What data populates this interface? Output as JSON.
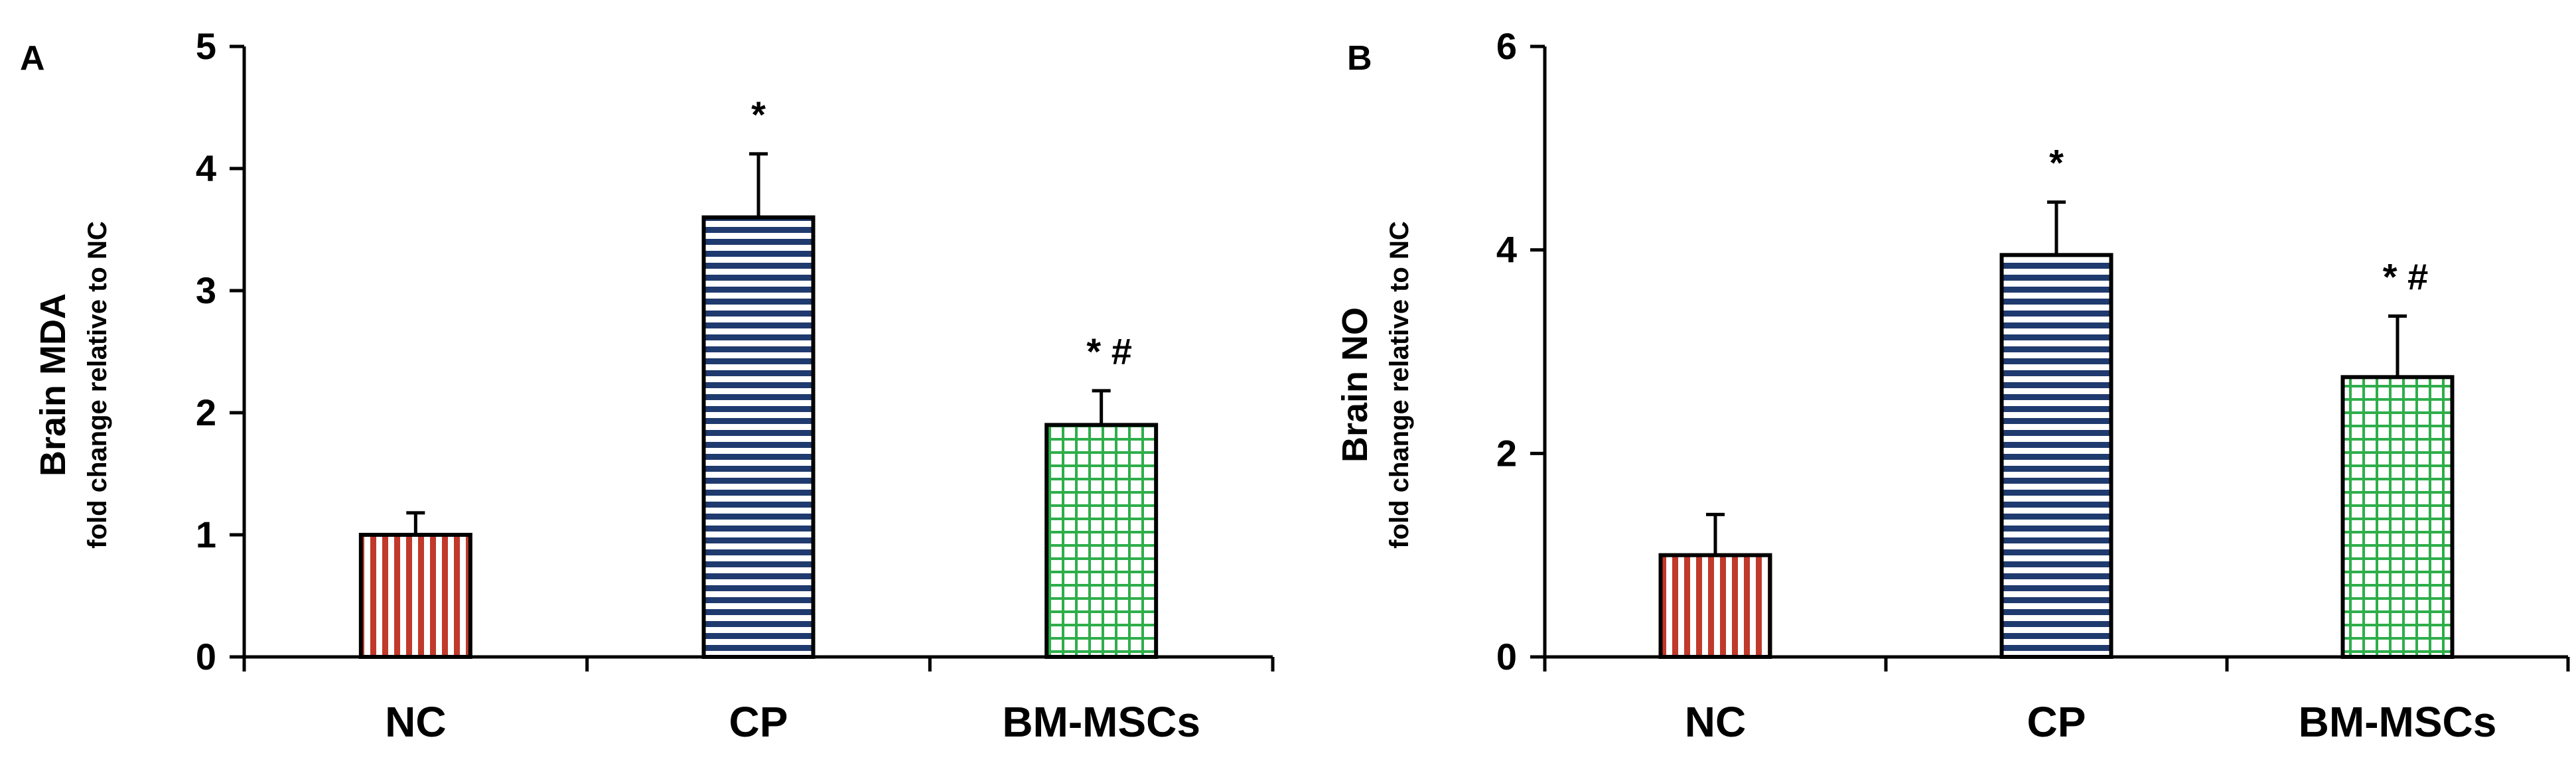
{
  "colors": {
    "NC": "#c0392b",
    "CP": "#1f3a6e",
    "BM-MSCs": "#2eae4a",
    "axis": "#000000",
    "bar_outline": "#000000"
  },
  "chart_data": [
    {
      "type": "bar",
      "panel_label": "A",
      "ylabel": "Brain MDA",
      "ylabel_sub": "fold change relative to NC",
      "xlabel": "",
      "categories": [
        "NC",
        "CP",
        "BM-MSCs"
      ],
      "values": [
        1.0,
        3.6,
        1.9
      ],
      "errors": [
        0.18,
        0.52,
        0.28
      ],
      "annotations": [
        "",
        "*",
        "* #"
      ],
      "patterns": [
        "vertical-stripes",
        "horizontal-stripes",
        "grid"
      ],
      "ylim": [
        0,
        5
      ],
      "yticks": [
        "0",
        "1",
        "2",
        "3",
        "4",
        "5"
      ],
      "grid": false
    },
    {
      "type": "bar",
      "panel_label": "B",
      "ylabel": "Brain NO",
      "ylabel_sub": "fold change relative to NC",
      "xlabel": "",
      "categories": [
        "NC",
        "CP",
        "BM-MSCs"
      ],
      "values": [
        1.0,
        3.95,
        2.75
      ],
      "errors": [
        0.4,
        0.52,
        0.6
      ],
      "annotations": [
        "",
        "*",
        "* #"
      ],
      "patterns": [
        "vertical-stripes",
        "horizontal-stripes",
        "grid"
      ],
      "ylim": [
        0,
        6
      ],
      "yticks": [
        "0",
        "2",
        "4",
        "6"
      ],
      "grid": false
    }
  ]
}
